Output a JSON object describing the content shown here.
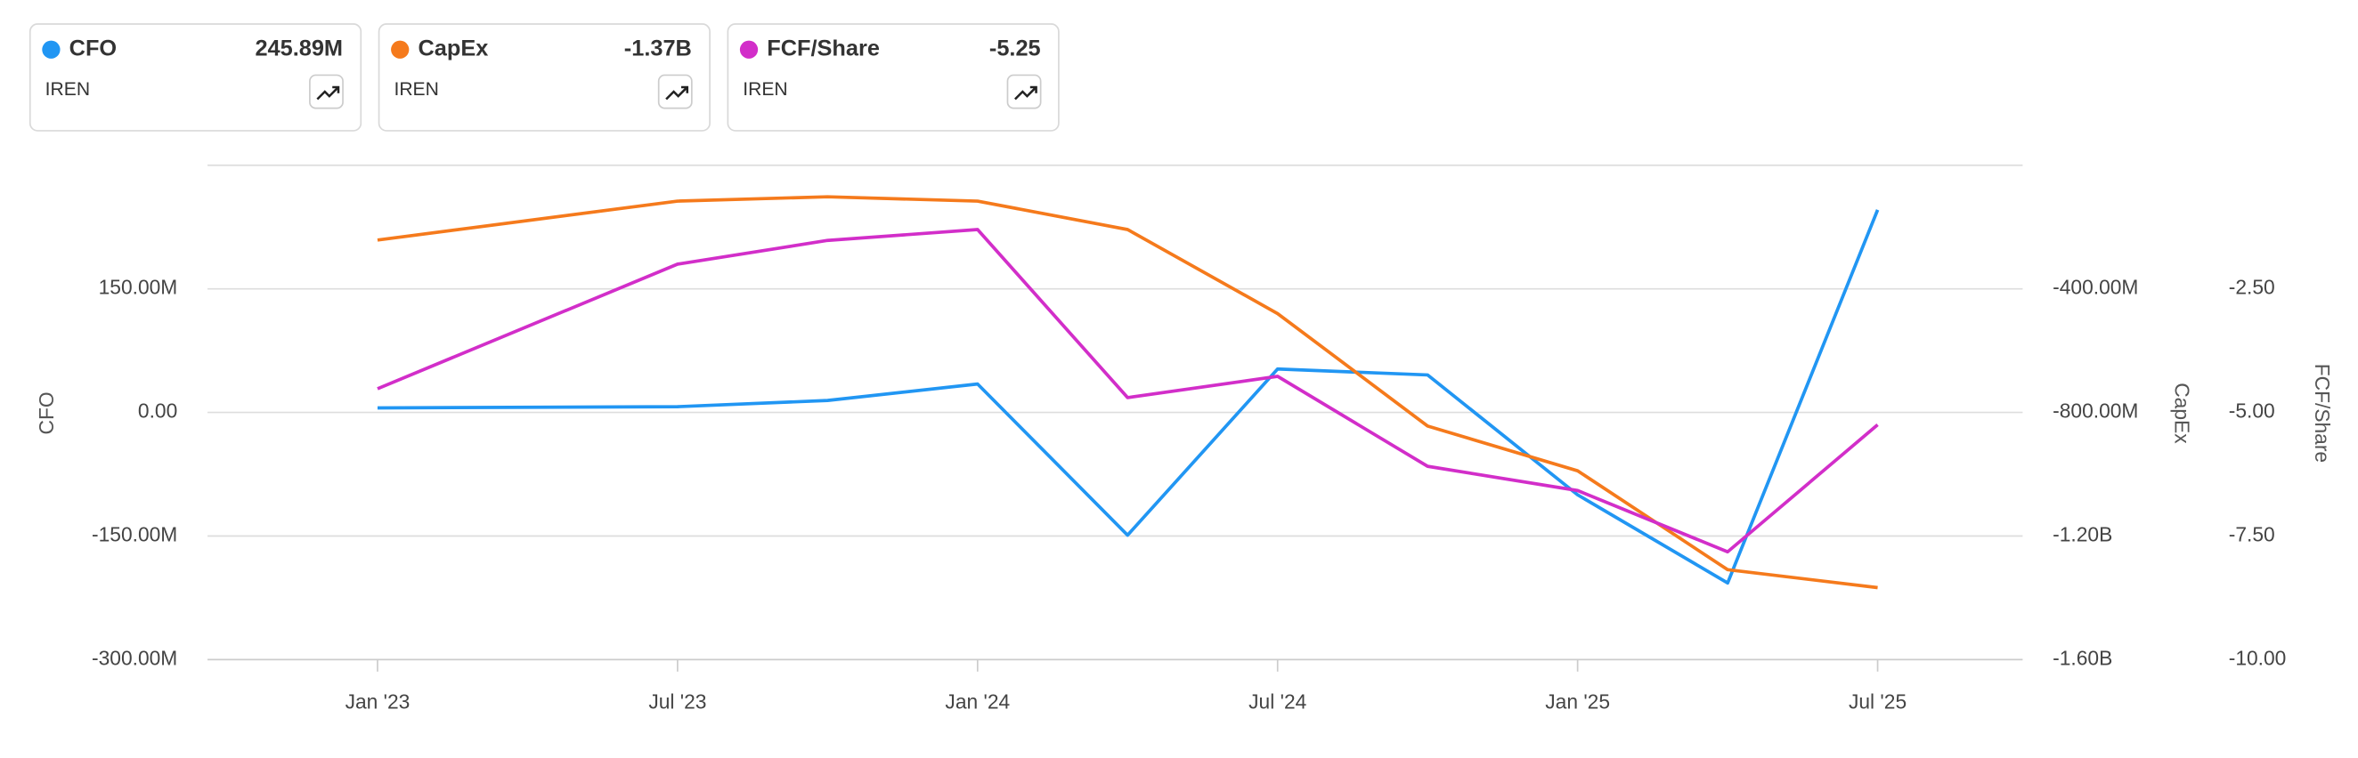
{
  "cards": [
    {
      "value": "245.89M",
      "ticker": "IREN"
    },
    {
      "value": "-1.37B",
      "ticker": "IREN"
    },
    {
      "value": "-5.25",
      "ticker": "IREN"
    }
  ],
  "chart_data": {
    "type": "line",
    "x": [
      0,
      6,
      9,
      12,
      15,
      18,
      21,
      24,
      27,
      30
    ],
    "xlim": [
      -3.4,
      32.9
    ],
    "xticks": [
      {
        "value": 0,
        "label": "Jan '23"
      },
      {
        "value": 6,
        "label": "Jul '23"
      },
      {
        "value": 12,
        "label": "Jan '24"
      },
      {
        "value": 18,
        "label": "Jul '24"
      },
      {
        "value": 24,
        "label": "Jan '25"
      },
      {
        "value": 30,
        "label": "Jul '25"
      }
    ],
    "ylabel": "CFO",
    "ylim": [
      -300,
      300
    ],
    "yticks": [
      {
        "value": -300,
        "label": "-300.00M"
      },
      {
        "value": -150,
        "label": "-150.00M"
      },
      {
        "value": 0,
        "label": "0.00"
      },
      {
        "value": 150,
        "label": "150.00M"
      }
    ],
    "y2label": "CapEx",
    "y2lim": [
      -1600,
      0
    ],
    "y2ticks": [
      {
        "value": -1600,
        "label": "-1.60B"
      },
      {
        "value": -1200,
        "label": "-1.20B"
      },
      {
        "value": -800,
        "label": "-800.00M"
      },
      {
        "value": -400,
        "label": "-400.00M"
      }
    ],
    "y3label": "FCF/Share",
    "y3lim": [
      -10,
      0
    ],
    "y3ticks": [
      {
        "value": -10,
        "label": "-10.00"
      },
      {
        "value": -7.5,
        "label": "-7.50"
      },
      {
        "value": -5,
        "label": "-5.00"
      },
      {
        "value": -2.5,
        "label": "-2.50"
      }
    ],
    "grid": true,
    "series": [
      {
        "name": "CFO",
        "color": "#2196f3",
        "axis": "y",
        "values": [
          5.5,
          7,
          14.5,
          34.5,
          -149,
          52.7,
          45.5,
          -100,
          -207,
          245.89
        ]
      },
      {
        "name": "CapEx",
        "color": "#f57a1c",
        "axis": "y2",
        "values": [
          -242,
          -116,
          -102,
          -116,
          -208,
          -480,
          -844,
          -989,
          -1309,
          -1367
        ]
      },
      {
        "name": "FCF/Share",
        "color": "#d22ec9",
        "axis": "y3",
        "values": [
          -4.52,
          -2.0,
          -1.52,
          -1.3,
          -4.7,
          -4.27,
          -6.09,
          -6.58,
          -7.82,
          -5.25
        ]
      }
    ]
  }
}
